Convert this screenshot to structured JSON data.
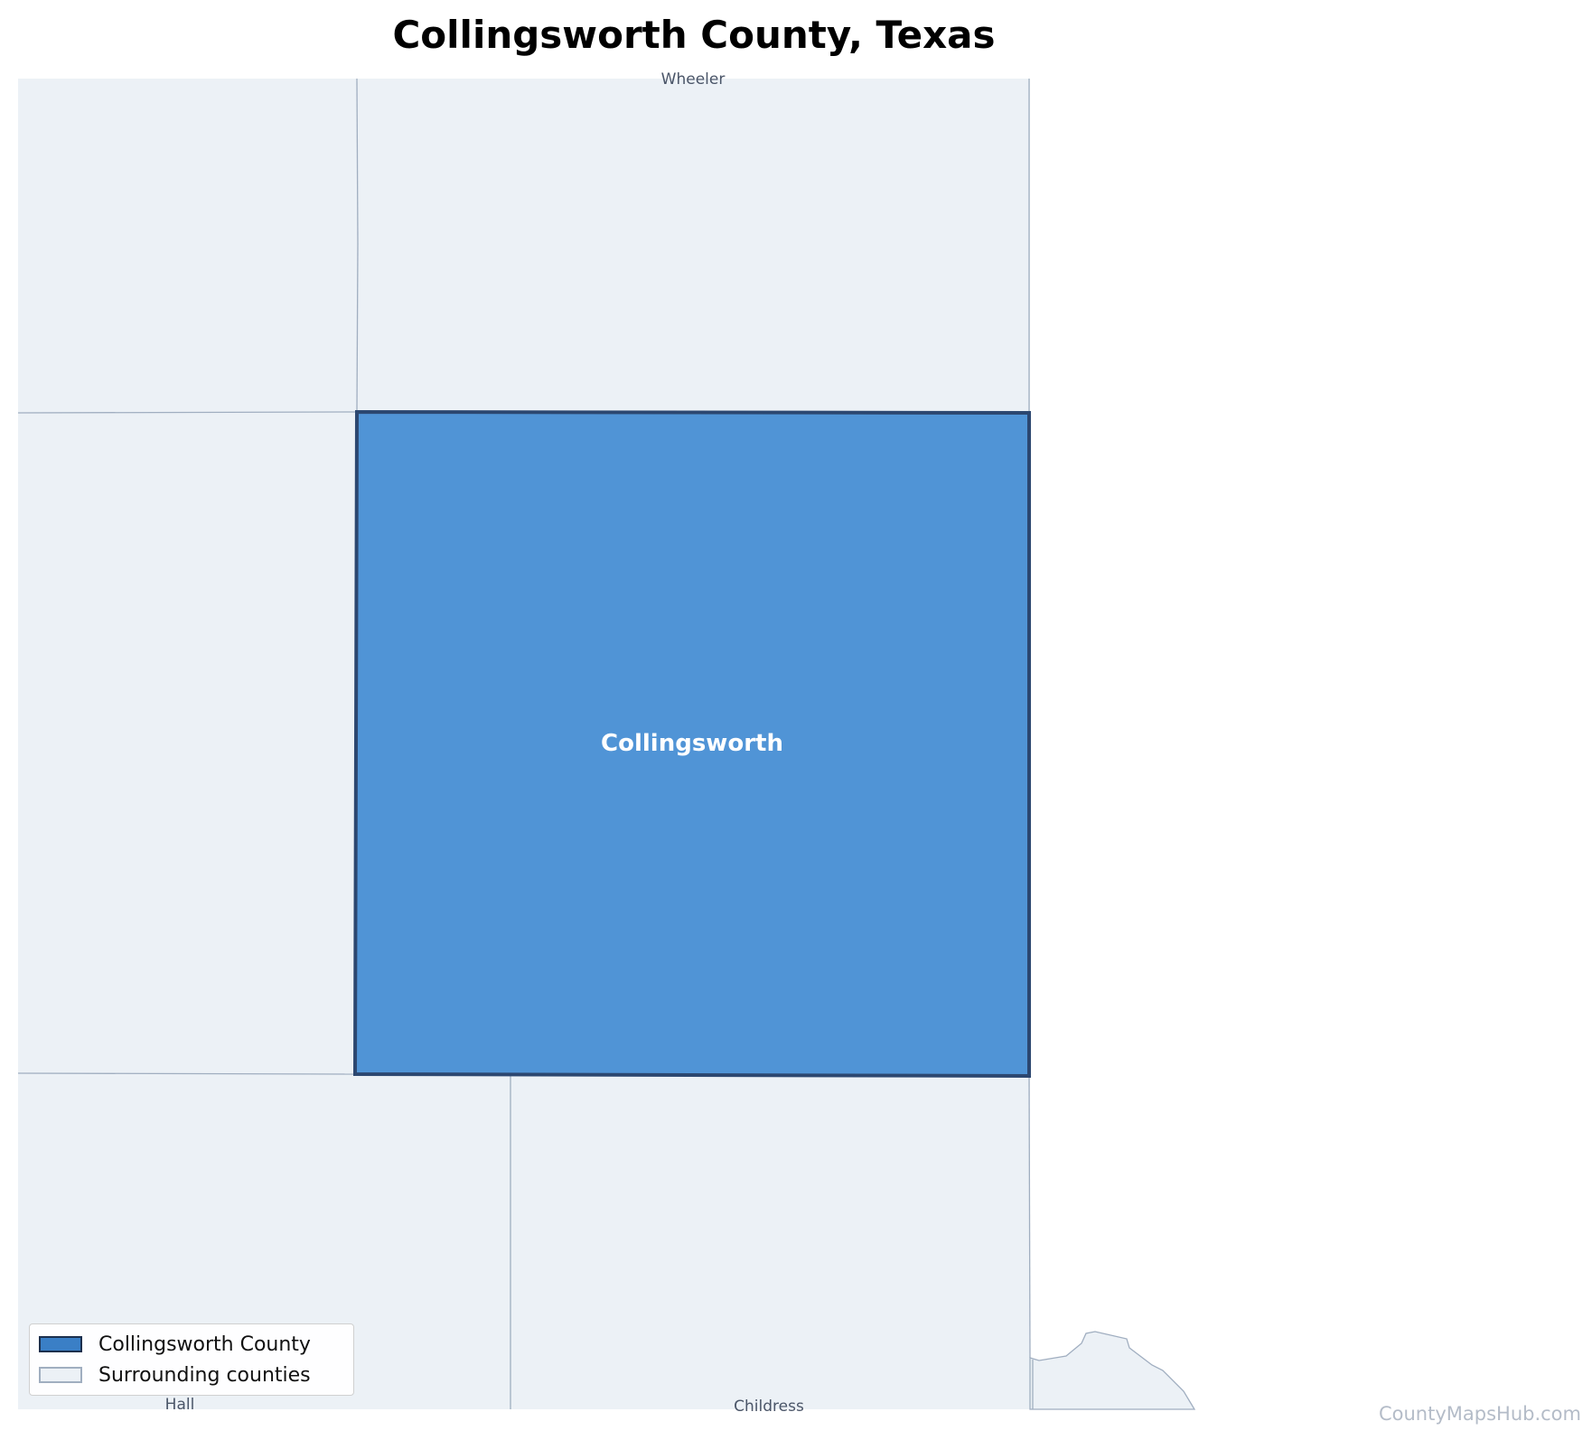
{
  "title": "Collingsworth County, Texas",
  "colors": {
    "focus_fill": "#5094d6",
    "focus_border": "#2c4770",
    "neighbor_fill": "#ecf1f6",
    "neighbor_border": "#a0aec0"
  },
  "map": {
    "focus_county": "Collingsworth",
    "neighbors": {
      "north": "Wheeler",
      "southwest": "Hall",
      "south": "Childress"
    }
  },
  "legend": {
    "focus_label": "Collingsworth County",
    "surrounding_label": "Surrounding counties"
  },
  "watermark": "CountyMapsHub.com"
}
